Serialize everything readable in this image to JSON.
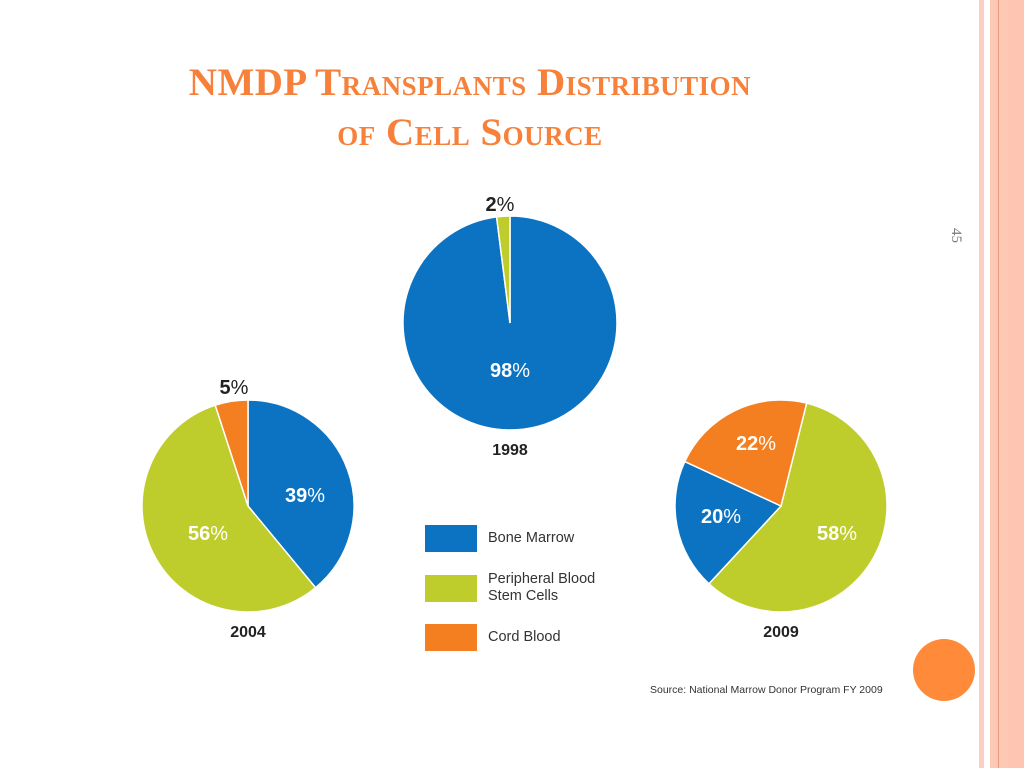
{
  "slide": {
    "title_line1": "NMDP Transplants Distribution",
    "title_line2": "of Cell Source",
    "slide_number": "45",
    "source": "Source: National Marrow Donor Program FY 2009",
    "colors": {
      "title": "#F7813A",
      "bone_marrow": "#0B73C1",
      "peripheral_blood": "#BFCD2C",
      "cord_blood": "#F37F21",
      "accent_dot": "#FF8A3A"
    }
  },
  "legend": [
    {
      "key": "bone_marrow",
      "label_lines": [
        "Bone Marrow"
      ],
      "color": "#0B73C1"
    },
    {
      "key": "peripheral_blood",
      "label_lines": [
        "Peripheral Blood",
        "Stem Cells"
      ],
      "color": "#BFCD2C"
    },
    {
      "key": "cord_blood",
      "label_lines": [
        "Cord Blood"
      ],
      "color": "#F37F21"
    }
  ],
  "chart_data": [
    {
      "type": "pie",
      "title": "1998",
      "start_angle_deg": 0,
      "slices": [
        {
          "name": "Bone Marrow",
          "value": 98,
          "label": "98",
          "label_pos": "inside",
          "color": "#0B73C1"
        },
        {
          "name": "Peripheral Blood Stem Cells",
          "value": 2,
          "label": "2",
          "label_pos": "outside",
          "color": "#BFCD2C"
        }
      ]
    },
    {
      "type": "pie",
      "title": "2004",
      "start_angle_deg": 0,
      "slices": [
        {
          "name": "Bone Marrow",
          "value": 39,
          "label": "39",
          "label_pos": "inside",
          "color": "#0B73C1"
        },
        {
          "name": "Peripheral Blood Stem Cells",
          "value": 56,
          "label": "56",
          "label_pos": "inside",
          "color": "#BFCD2C"
        },
        {
          "name": "Cord Blood",
          "value": 5,
          "label": "5",
          "label_pos": "outside",
          "color": "#F37F21"
        }
      ]
    },
    {
      "type": "pie",
      "title": "2009",
      "start_angle_deg": 14,
      "slices": [
        {
          "name": "Peripheral Blood Stem Cells",
          "value": 58,
          "label": "58",
          "label_pos": "inside",
          "color": "#BFCD2C"
        },
        {
          "name": "Bone Marrow",
          "value": 20,
          "label": "20",
          "label_pos": "inside",
          "color": "#0B73C1"
        },
        {
          "name": "Cord Blood",
          "value": 22,
          "label": "22",
          "label_pos": "inside",
          "color": "#F37F21"
        }
      ]
    }
  ]
}
